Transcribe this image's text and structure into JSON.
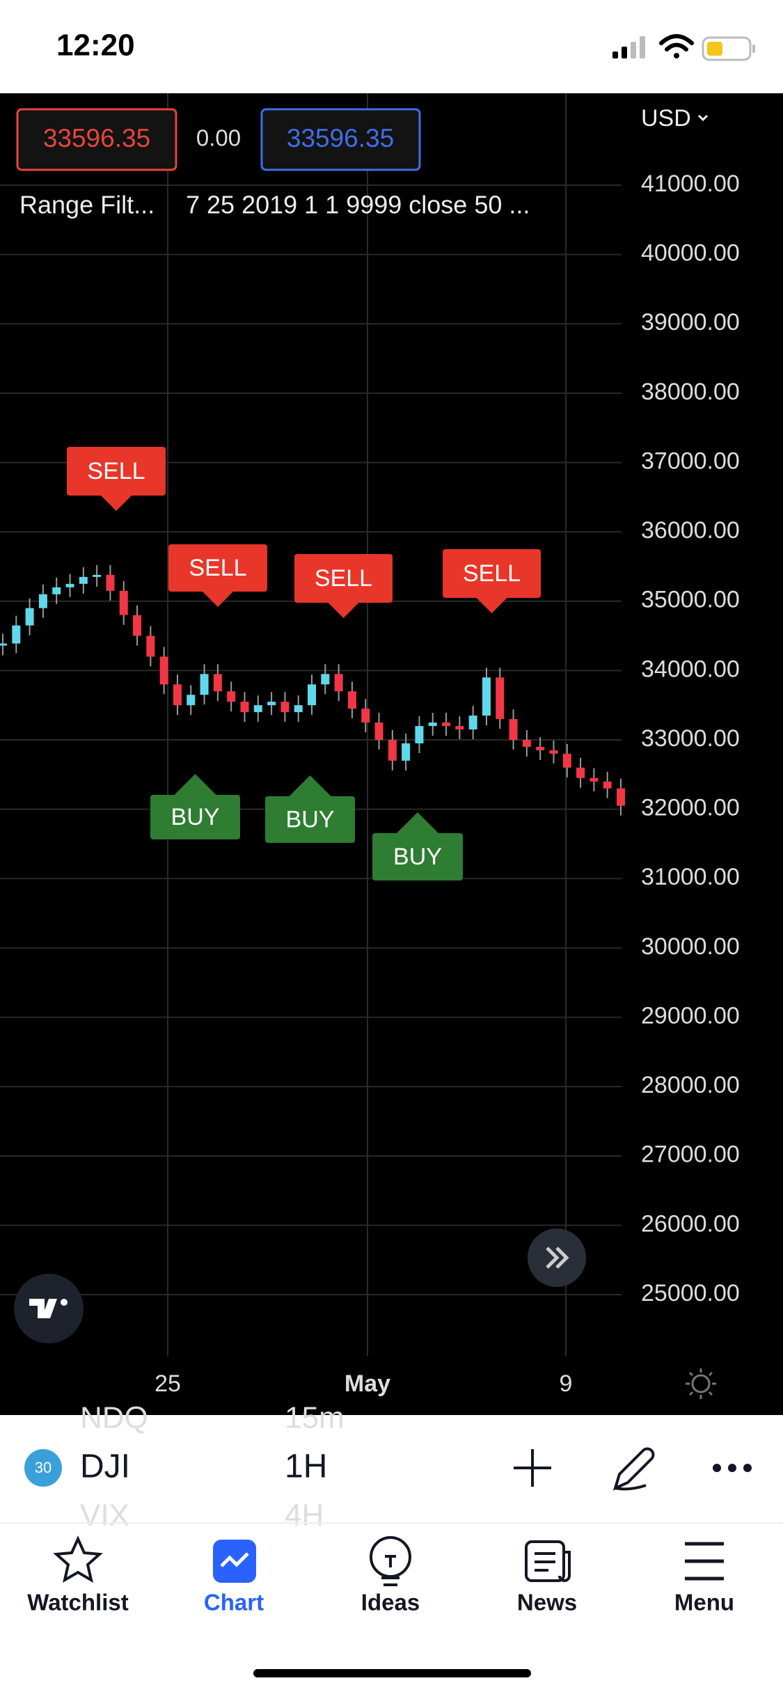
{
  "status_bar": {
    "time": "12:20"
  },
  "chart": {
    "currency": "USD",
    "price_boxes": [
      "33596.35",
      "0.00",
      "33596.35"
    ],
    "indicator": {
      "name": "Range Filt...",
      "params": "7 25 2019 1 1 9999 close 50 ..."
    },
    "price_axis": [
      "41000.00",
      "40000.00",
      "39000.00",
      "38000.00",
      "37000.00",
      "36000.00",
      "35000.00",
      "34000.00",
      "33000.00",
      "32000.00",
      "31000.00",
      "30000.00",
      "29000.00",
      "28000.00",
      "27000.00",
      "26000.00",
      "25000.00"
    ],
    "time_axis": [
      "25",
      "May",
      "9"
    ],
    "signals": [
      "SELL",
      "SELL",
      "SELL",
      "SELL",
      "BUY",
      "BUY",
      "BUY"
    ],
    "closes": [
      34390,
      34650,
      34900,
      35100,
      35200,
      35250,
      35350,
      35380,
      35150,
      34800,
      34500,
      34200,
      33800,
      33500,
      33650,
      33950,
      33700,
      33550,
      33400,
      33500,
      33550,
      33400,
      33500,
      33800,
      33950,
      33700,
      33450,
      33250,
      33000,
      32700,
      32950,
      33200,
      33250,
      33200,
      33150,
      33350,
      33900,
      33300,
      33000,
      32900,
      32850,
      32800,
      32600,
      32450,
      32400,
      32300,
      32050
    ]
  },
  "toolbar": {
    "badge": "30",
    "symbol": "DJI",
    "symbol_prev": "NDQ",
    "symbol_next": "VIX",
    "interval": "1H",
    "interval_prev": "15m",
    "interval_next": "4H"
  },
  "tabs": [
    "Watchlist",
    "Chart",
    "Ideas",
    "News",
    "Menu"
  ]
}
